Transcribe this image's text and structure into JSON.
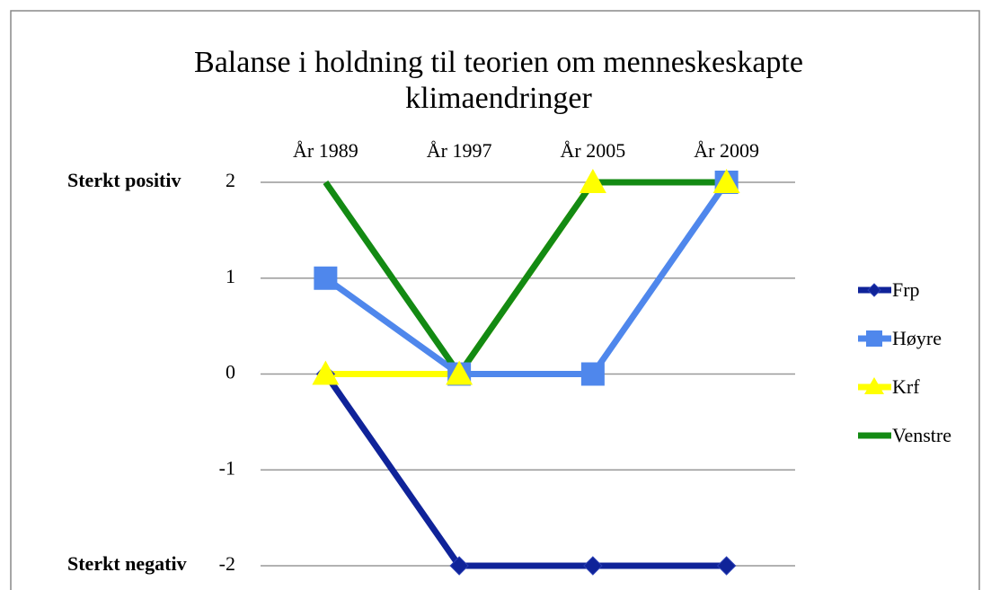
{
  "chart_data": {
    "type": "line",
    "title": "Balanse i holdning til teorien om menneskeskapte klimaendringer",
    "annotations": [
      "Sterkt positiv",
      "Sterkt negativ"
    ],
    "categories": [
      "År 1989",
      "År 1997",
      "År 2005",
      "År 2009"
    ],
    "series": [
      {
        "name": "Frp",
        "color": "#0f2399",
        "marker": "diamond",
        "values": [
          0,
          -2,
          -2,
          -2
        ]
      },
      {
        "name": "Høyre",
        "color": "#4f87ec",
        "marker": "square",
        "values": [
          1,
          0,
          0,
          2
        ]
      },
      {
        "name": "Krf",
        "color": "#ffff00",
        "marker": "triangle",
        "values": [
          0,
          0,
          2,
          2
        ]
      },
      {
        "name": "Venstre",
        "color": "#138a13",
        "marker": "none",
        "values": [
          2,
          0,
          2,
          2
        ]
      }
    ],
    "ylim": [
      -2,
      2
    ],
    "yticks": [
      -2,
      -1,
      0,
      1,
      2
    ],
    "grid": true,
    "legend": "right"
  }
}
